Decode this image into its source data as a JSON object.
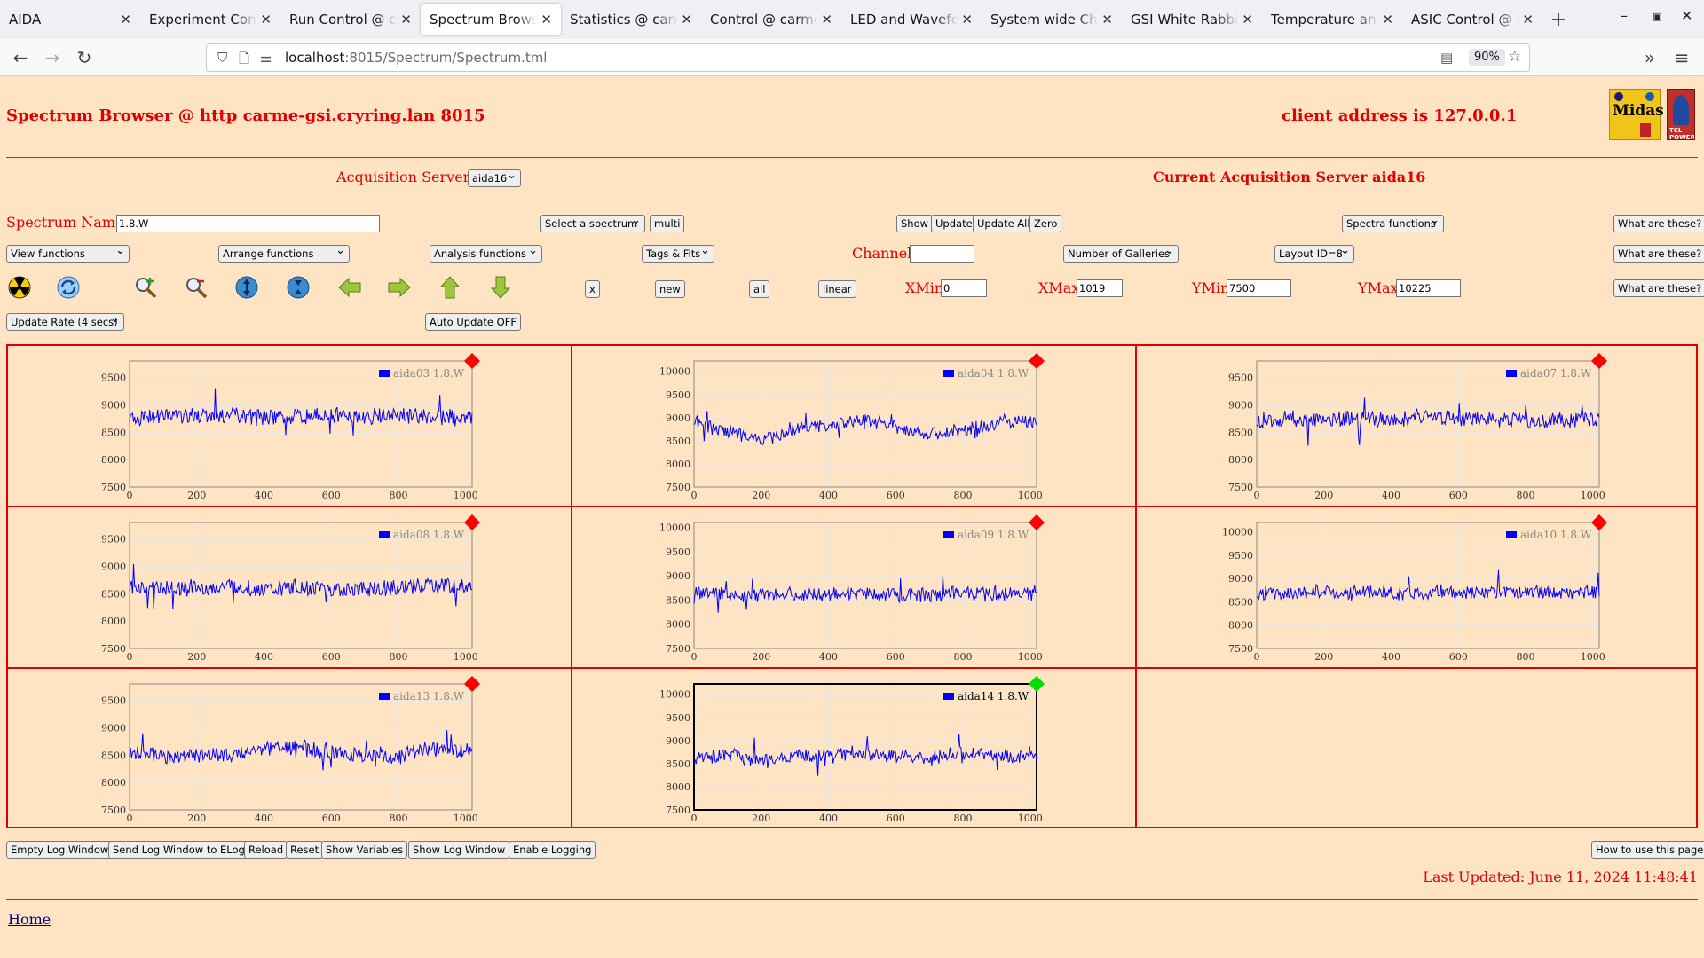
{
  "browser": {
    "tabs": [
      {
        "title": "AIDA",
        "active": false
      },
      {
        "title": "Experiment Control",
        "active": false
      },
      {
        "title": "Run Control @ carme",
        "active": false
      },
      {
        "title": "Spectrum Browser",
        "active": true
      },
      {
        "title": "Statistics @ carme",
        "active": false
      },
      {
        "title": "Control @ carme-gsi",
        "active": false
      },
      {
        "title": "LED and Waveform",
        "active": false
      },
      {
        "title": "System wide Check",
        "active": false
      },
      {
        "title": "GSI White Rabbit T",
        "active": false
      },
      {
        "title": "Temperature and st",
        "active": false
      },
      {
        "title": "ASIC Control @ car",
        "active": false
      }
    ],
    "url_host": "localhost",
    "url_path": ":8015/Spectrum/Spectrum.tml",
    "zoom": "90%"
  },
  "header": {
    "title": "Spectrum Browser @ http carme-gsi.cryring.lan 8015",
    "client_address": "client address is 127.0.0.1",
    "logo_midas_text": "Midas",
    "logo_tcl_text": "TCL POWERED"
  },
  "acquisition": {
    "servers_label": "Acquisition Servers",
    "server_selected": "aida16",
    "current_label": "Current Acquisition Server aida16"
  },
  "controls": {
    "spectrum_name_label": "Spectrum Name:",
    "spectrum_name_value": "1.8.W",
    "select_spectrum": "Select a spectrum",
    "multi": "multi",
    "show": "Show",
    "update": "Update",
    "update_all": "Update All",
    "zero": "Zero",
    "spectra_functions": "Spectra functions",
    "what_are_these": "What are these?",
    "view_functions": "View functions",
    "arrange_functions": "Arrange functions",
    "analysis_functions": "Analysis functions",
    "tags_fits": "Tags & Fits",
    "channel_label": "Channel:",
    "channel_value": "",
    "number_of_galleries": "Number of Galleries",
    "layout": "Layout ID=8",
    "x_btn": "x",
    "new_btn": "new",
    "all_btn": "all",
    "linear_btn": "linear",
    "xmin_label": "XMin",
    "xmin_value": "0",
    "xmax_label": "XMax",
    "xmax_value": "1019",
    "ymin_label": "YMin",
    "ymin_value": "7500",
    "ymax_label": "YMax",
    "ymax_value": "10225",
    "update_rate": "Update Rate (4 secs)",
    "auto_update": "Auto Update OFF"
  },
  "icons": [
    "radiation-icon",
    "refresh-icon",
    "zoom-in-icon",
    "zoom-out-icon",
    "expand-y-icon",
    "compress-y-icon",
    "arrow-left-icon",
    "arrow-right-icon",
    "arrow-up-icon",
    "arrow-down-icon"
  ],
  "colors": {
    "page_bg": "#ffe4c4",
    "accent_red": "#e00000",
    "series_blue": "#0000ff",
    "status_red": "#ff0000",
    "status_green": "#00dd00"
  },
  "chart_data": [
    {
      "type": "line",
      "series": [
        {
          "name": "aida03 1.8.W",
          "values": [
            8750,
            8800,
            8780,
            8820,
            8760,
            8790,
            8810,
            8770,
            8800,
            8780
          ]
        }
      ],
      "x": [
        0,
        100,
        200,
        300,
        400,
        500,
        600,
        700,
        800,
        900
      ],
      "xlim": [
        0,
        1019
      ],
      "ylim": [
        7500,
        9800
      ],
      "yticks": [
        7500,
        8000,
        8500,
        9000,
        9500
      ],
      "xticks": [
        0,
        200,
        400,
        600,
        800,
        1000
      ],
      "status": "red",
      "selected": false
    },
    {
      "type": "line",
      "series": [
        {
          "name": "aida04 1.8.W",
          "values": [
            8900,
            8700,
            8500,
            8750,
            8850,
            8950,
            8800,
            8650,
            8700,
            8900
          ]
        }
      ],
      "x": [
        0,
        100,
        200,
        300,
        400,
        500,
        600,
        700,
        800,
        900
      ],
      "xlim": [
        0,
        1019
      ],
      "ylim": [
        7500,
        10225
      ],
      "yticks": [
        7500,
        8000,
        8500,
        9000,
        9500,
        10000
      ],
      "xticks": [
        0,
        200,
        400,
        600,
        800,
        1000
      ],
      "status": "red",
      "selected": false
    },
    {
      "type": "line",
      "series": [
        {
          "name": "aida07 1.8.W",
          "values": [
            8700,
            8750,
            8720,
            8760,
            8700,
            8780,
            8720,
            8750,
            8700,
            8720
          ]
        }
      ],
      "x": [
        0,
        100,
        200,
        300,
        400,
        500,
        600,
        700,
        800,
        900
      ],
      "xlim": [
        0,
        1019
      ],
      "ylim": [
        7500,
        9800
      ],
      "yticks": [
        7500,
        8000,
        8500,
        9000,
        9500
      ],
      "xticks": [
        0,
        200,
        400,
        600,
        800,
        1000
      ],
      "status": "red",
      "selected": false
    },
    {
      "type": "line",
      "series": [
        {
          "name": "aida08 1.8.W",
          "values": [
            8600,
            8620,
            8580,
            8640,
            8560,
            8620,
            8600,
            8580,
            8620,
            8650
          ]
        }
      ],
      "x": [
        0,
        100,
        200,
        300,
        400,
        500,
        600,
        700,
        800,
        900
      ],
      "xlim": [
        0,
        1019
      ],
      "ylim": [
        7500,
        9800
      ],
      "yticks": [
        7500,
        8000,
        8500,
        9000,
        9500
      ],
      "xticks": [
        0,
        200,
        400,
        600,
        800,
        1000
      ],
      "status": "red",
      "selected": false
    },
    {
      "type": "line",
      "series": [
        {
          "name": "aida09 1.8.W",
          "values": [
            8650,
            8620,
            8600,
            8640,
            8620,
            8650,
            8620,
            8600,
            8640,
            8620
          ]
        }
      ],
      "x": [
        0,
        100,
        200,
        300,
        400,
        500,
        600,
        700,
        800,
        900
      ],
      "xlim": [
        0,
        1019
      ],
      "ylim": [
        7500,
        10100
      ],
      "yticks": [
        7500,
        8000,
        8500,
        9000,
        9500,
        10000
      ],
      "xticks": [
        0,
        200,
        400,
        600,
        800,
        1000
      ],
      "status": "red",
      "selected": false
    },
    {
      "type": "line",
      "series": [
        {
          "name": "aida10 1.8.W",
          "values": [
            8700,
            8680,
            8720,
            8700,
            8690,
            8710,
            8700,
            8680,
            8720,
            8700
          ]
        }
      ],
      "x": [
        0,
        100,
        200,
        300,
        400,
        500,
        600,
        700,
        800,
        900
      ],
      "xlim": [
        0,
        1019
      ],
      "ylim": [
        7500,
        10200
      ],
      "yticks": [
        7500,
        8000,
        8500,
        9000,
        9500,
        10000
      ],
      "xticks": [
        0,
        200,
        400,
        600,
        800,
        1000
      ],
      "status": "red",
      "selected": false
    },
    {
      "type": "line",
      "series": [
        {
          "name": "aida13 1.8.W",
          "values": [
            8550,
            8500,
            8480,
            8520,
            8600,
            8650,
            8550,
            8500,
            8480,
            8600
          ]
        }
      ],
      "x": [
        0,
        100,
        200,
        300,
        400,
        500,
        600,
        700,
        800,
        900
      ],
      "xlim": [
        0,
        1019
      ],
      "ylim": [
        7500,
        9800
      ],
      "yticks": [
        7500,
        8000,
        8500,
        9000,
        9500
      ],
      "xticks": [
        0,
        200,
        400,
        600,
        800,
        1000
      ],
      "status": "red",
      "selected": false
    },
    {
      "type": "line",
      "series": [
        {
          "name": "aida14 1.8.W",
          "values": [
            8600,
            8700,
            8550,
            8650,
            8700,
            8750,
            8650,
            8600,
            8750,
            8650
          ]
        }
      ],
      "x": [
        0,
        100,
        200,
        300,
        400,
        500,
        600,
        700,
        800,
        900
      ],
      "xlim": [
        0,
        1019
      ],
      "ylim": [
        7500,
        10225
      ],
      "yticks": [
        7500,
        8000,
        8500,
        9000,
        9500,
        10000
      ],
      "xticks": [
        0,
        200,
        400,
        600,
        800,
        1000
      ],
      "status": "green",
      "selected": true
    }
  ],
  "footer": {
    "buttons": [
      "Empty Log Window",
      "Send Log Window to ELog",
      "Reload",
      "Reset",
      "Show Variables",
      "Show Log Window",
      "Enable Logging"
    ],
    "how_to": "How to use this page",
    "last_updated": "Last Updated: June 11, 2024 11:48:41",
    "home": "Home"
  }
}
